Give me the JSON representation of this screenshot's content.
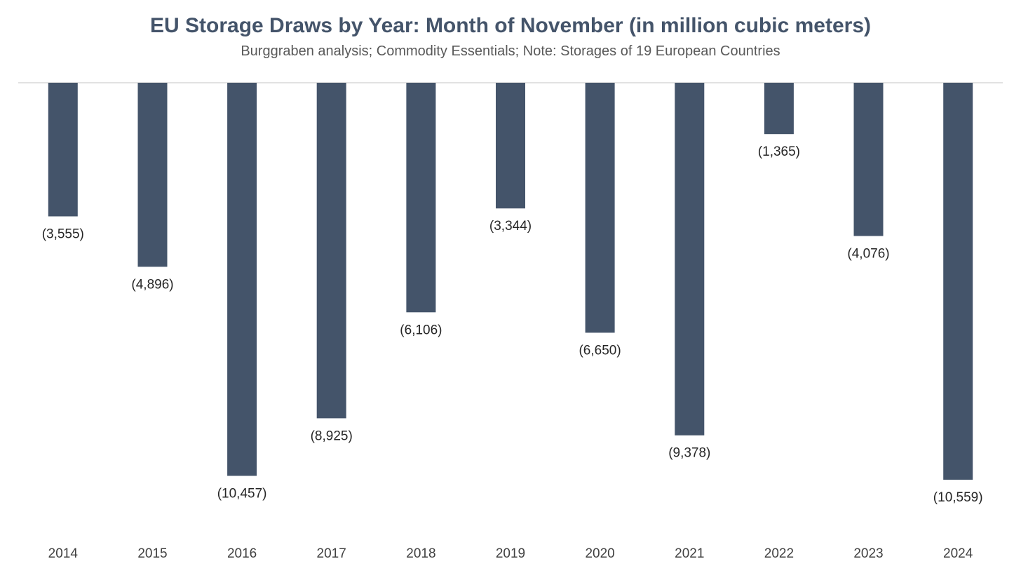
{
  "chart_data": {
    "type": "bar",
    "title": "EU Storage Draws by Year: Month of November (in million cubic meters)",
    "subtitle": "Burggraben analysis; Commodity Essentials; Note: Storages of 19 European Countries",
    "categories": [
      "2014",
      "2015",
      "2016",
      "2017",
      "2018",
      "2019",
      "2020",
      "2021",
      "2022",
      "2023",
      "2024"
    ],
    "values": [
      -3555,
      -4896,
      -10457,
      -8925,
      -6106,
      -3344,
      -6650,
      -9378,
      -1365,
      -4076,
      -10559
    ],
    "data_labels": [
      "(3,555)",
      "(4,896)",
      "(10,457)",
      "(8,925)",
      "(6,106)",
      "(3,344)",
      "(6,650)",
      "(9,378)",
      "(1,365)",
      "(4,076)",
      "(10,559)"
    ],
    "ylim": [
      -12000,
      0
    ],
    "grid": false,
    "legend": "none",
    "bar_color": "#44546a",
    "axis_color": "#d9d9d9"
  }
}
